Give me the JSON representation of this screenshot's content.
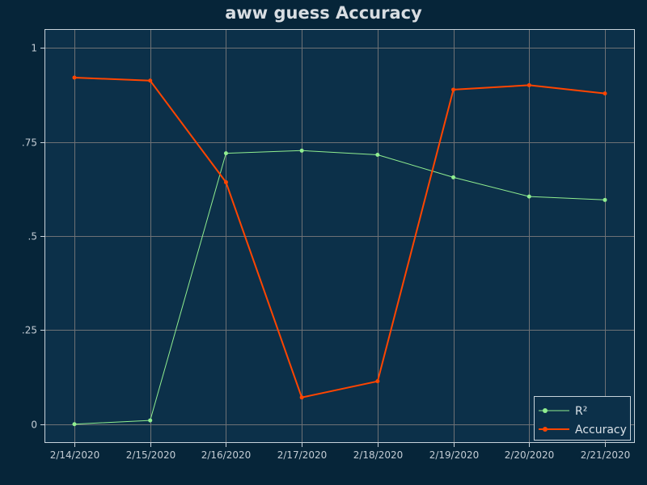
{
  "chart_data": {
    "type": "line",
    "title": "aww guess Accuracy",
    "xlabel": "",
    "ylabel": "",
    "x": [
      "2/14/2020",
      "2/15/2020",
      "2/16/2020",
      "2/17/2020",
      "2/18/2020",
      "2/19/2020",
      "2/20/2020",
      "2/21/2020"
    ],
    "ylim": [
      -0.05,
      1.05
    ],
    "yticks": [
      0,
      0.25,
      0.5,
      0.75,
      1
    ],
    "ytick_labels": [
      "0",
      ".25",
      ".5",
      ".75",
      "1"
    ],
    "grid": true,
    "legend_position": "bottom-right",
    "series": [
      {
        "name": "R²",
        "color": "#90ee90",
        "values": [
          0.0,
          0.01,
          0.72,
          0.727,
          0.716,
          0.656,
          0.605,
          0.596
        ]
      },
      {
        "name": "Accuracy",
        "color": "#ff4500",
        "values": [
          0.921,
          0.913,
          0.643,
          0.071,
          0.114,
          0.889,
          0.901,
          0.879
        ]
      }
    ],
    "colors": {
      "background": "#062539",
      "plot_background": "#0c3049",
      "grid": "#6e7175",
      "frame": "#c8d3db"
    }
  }
}
